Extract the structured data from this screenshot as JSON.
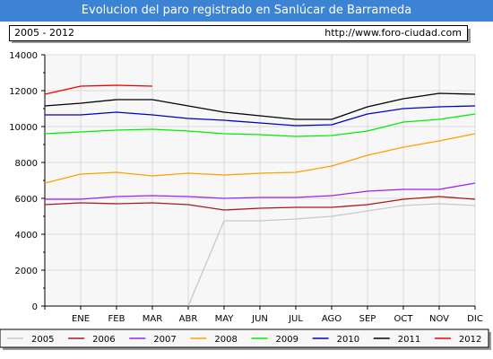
{
  "title": "Evolucion del paro registrado en Sanlúcar de Barrameda",
  "header": {
    "period": "2005 - 2012",
    "url": "http://www.foro-ciudad.com"
  },
  "chart_data": {
    "type": "line",
    "title": "Evolucion del paro registrado en Sanlúcar de Barrameda",
    "xlabel": "",
    "ylabel": "",
    "ylim": [
      0,
      14000
    ],
    "yticks": [
      0,
      2000,
      4000,
      6000,
      8000,
      10000,
      12000,
      14000
    ],
    "categories": [
      "",
      "ENE",
      "FEB",
      "MAR",
      "ABR",
      "MAY",
      "JUN",
      "JUL",
      "AGO",
      "SEP",
      "OCT",
      "NOV",
      "DIC"
    ],
    "grid": true,
    "legend_position": "bottom",
    "series": [
      {
        "name": "2005",
        "color": "#c8c8c8",
        "values": [
          null,
          null,
          null,
          null,
          0,
          4750,
          4750,
          4850,
          5000,
          5300,
          5600,
          5700,
          5600
        ]
      },
      {
        "name": "2006",
        "color": "#aa1a1a",
        "values": [
          5650,
          5750,
          5700,
          5750,
          5650,
          5350,
          5450,
          5500,
          5500,
          5650,
          5950,
          6100,
          5950
        ]
      },
      {
        "name": "2007",
        "color": "#a020f0",
        "values": [
          5950,
          5950,
          6100,
          6150,
          6100,
          6000,
          6050,
          6050,
          6150,
          6400,
          6500,
          6500,
          6850
        ]
      },
      {
        "name": "2008",
        "color": "#ffa000",
        "values": [
          6850,
          7350,
          7450,
          7250,
          7400,
          7300,
          7400,
          7450,
          7800,
          8400,
          8850,
          9200,
          9600
        ]
      },
      {
        "name": "2009",
        "color": "#00ee00",
        "values": [
          9600,
          9700,
          9800,
          9850,
          9750,
          9600,
          9550,
          9450,
          9500,
          9750,
          10250,
          10400,
          10700
        ]
      },
      {
        "name": "2010",
        "color": "#0000cc",
        "values": [
          10650,
          10650,
          10800,
          10650,
          10450,
          10350,
          10200,
          10050,
          10100,
          10700,
          11000,
          11100,
          11150
        ]
      },
      {
        "name": "2011",
        "color": "#000000",
        "values": [
          11150,
          11300,
          11500,
          11500,
          11150,
          10800,
          10600,
          10400,
          10400,
          11100,
          11550,
          11850,
          11800
        ]
      },
      {
        "name": "2012",
        "color": "#ee0000",
        "values": [
          11800,
          12250,
          12300,
          12250,
          null,
          null,
          null,
          null,
          null,
          null,
          null,
          null,
          null
        ]
      }
    ]
  }
}
